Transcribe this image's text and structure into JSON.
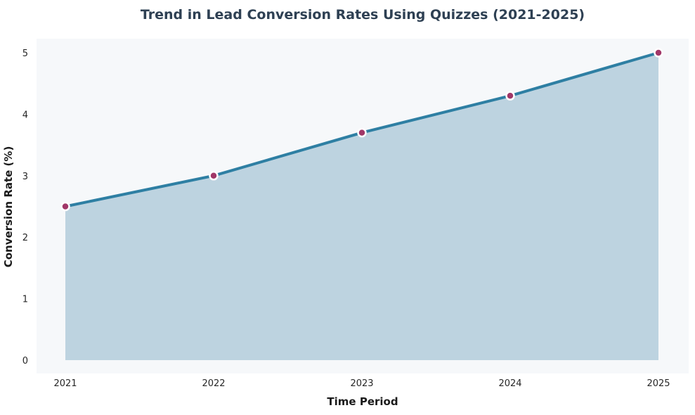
{
  "chart_data": {
    "type": "area",
    "title": "Trend in Lead Conversion Rates Using Quizzes (2021-2025)",
    "xlabel": "Time Period",
    "ylabel": "Conversion Rate (%)",
    "categories": [
      "2021",
      "2022",
      "2023",
      "2024",
      "2025"
    ],
    "values": [
      2.5,
      3.0,
      3.7,
      4.3,
      5.0
    ],
    "series_name": "Conversion Rate",
    "ylim": [
      0,
      5
    ],
    "yticks": [
      0,
      1,
      2,
      3,
      4,
      5
    ],
    "grid": false,
    "legend_position": "none",
    "colors": {
      "line": "#2e7fa3",
      "area_fill": "#bdd3e0",
      "marker": "#a13768",
      "marker_border": "#ffffff",
      "plot_background": "#f6f8fa",
      "page_background": "#ffffff",
      "title_color": "#2e4053",
      "tick_label_color": "#262626",
      "axis_label_color": "#1a1a1a"
    }
  }
}
